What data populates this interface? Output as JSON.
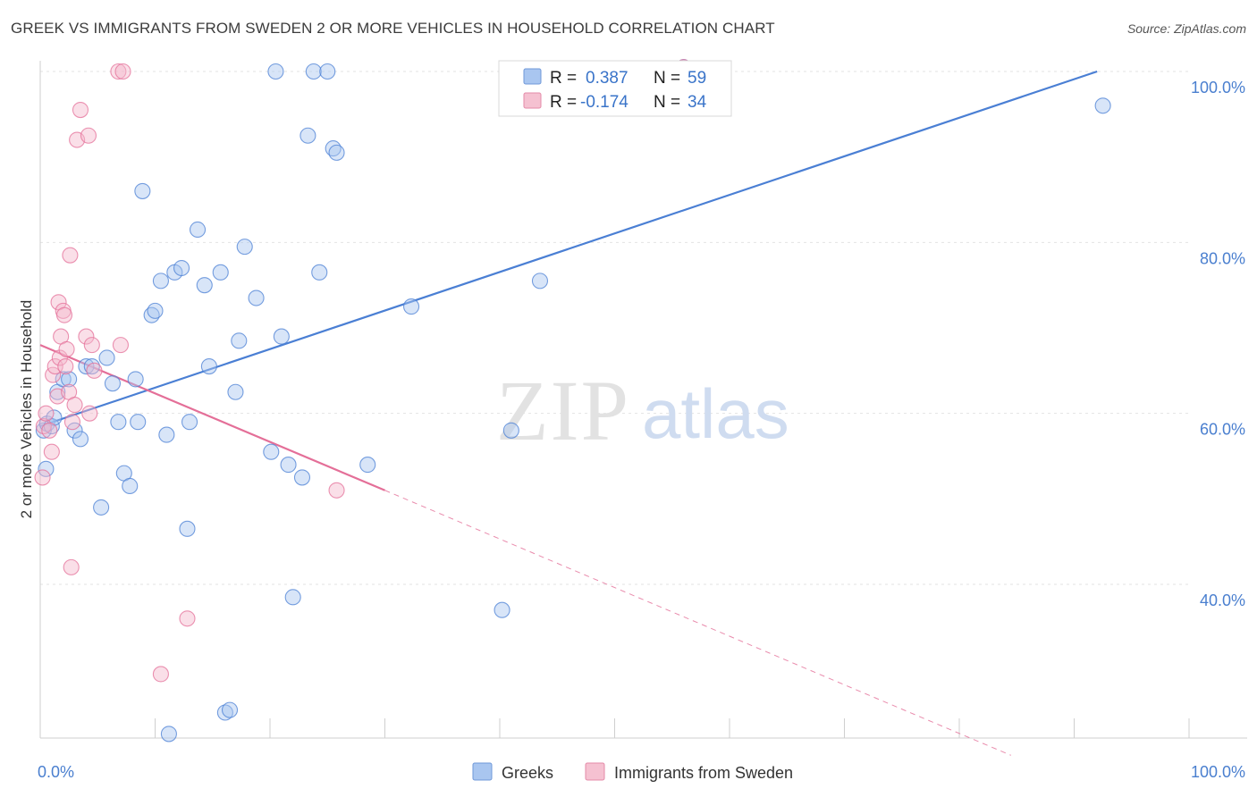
{
  "title": "GREEK VS IMMIGRANTS FROM SWEDEN 2 OR MORE VEHICLES IN HOUSEHOLD CORRELATION CHART",
  "source": "Source: ZipAtlas.com",
  "watermark": {
    "zip": "ZIP",
    "atlas": "atlas"
  },
  "legend": {
    "row1": {
      "r_label": "R =",
      "r_value": "0.387",
      "n_label": "N =",
      "n_value": "59"
    },
    "row2": {
      "r_label": "R =",
      "r_value": "-0.174",
      "n_label": "N =",
      "n_value": "34"
    }
  },
  "bottom_legend": {
    "series1": "Greeks",
    "series2": "Immigrants from Sweden"
  },
  "chart_data": {
    "type": "scatter",
    "title": "GREEK VS IMMIGRANTS FROM SWEDEN 2 OR MORE VEHICLES IN HOUSEHOLD CORRELATION CHART",
    "xlabel": "",
    "ylabel": "2 or more Vehicles in Household",
    "xlim": [
      0,
      100
    ],
    "ylim": [
      20,
      102
    ],
    "x_tick_labels": [
      "0.0%",
      "100.0%"
    ],
    "y_ticks": [
      40,
      60,
      80,
      100
    ],
    "y_tick_labels": [
      "40.0%",
      "60.0%",
      "80.0%",
      "100.0%"
    ],
    "grid": true,
    "legend_position": "top-center",
    "colors": {
      "greeks": "#4a7fd4",
      "greeks_fill": "#a9c6f0",
      "sweden": "#e46f98",
      "sweden_fill": "#f5b8cb"
    },
    "series": [
      {
        "name": "Greeks",
        "r": 0.387,
        "n": 59,
        "trend": {
          "x": [
            0,
            92
          ],
          "y": [
            58.5,
            100
          ],
          "style": "solid"
        },
        "points": [
          {
            "x": 0.3,
            "y": 58.0
          },
          {
            "x": 0.5,
            "y": 53.5
          },
          {
            "x": 0.6,
            "y": 58.8
          },
          {
            "x": 1.0,
            "y": 58.5
          },
          {
            "x": 1.2,
            "y": 59.5
          },
          {
            "x": 1.5,
            "y": 62.5
          },
          {
            "x": 2.0,
            "y": 64.0
          },
          {
            "x": 2.5,
            "y": 64.0
          },
          {
            "x": 3.0,
            "y": 58.0
          },
          {
            "x": 3.5,
            "y": 57.0
          },
          {
            "x": 4.0,
            "y": 65.5
          },
          {
            "x": 4.5,
            "y": 65.5
          },
          {
            "x": 5.3,
            "y": 49.0
          },
          {
            "x": 5.8,
            "y": 66.5
          },
          {
            "x": 6.3,
            "y": 63.5
          },
          {
            "x": 6.8,
            "y": 59.0
          },
          {
            "x": 7.3,
            "y": 53.0
          },
          {
            "x": 7.8,
            "y": 51.5
          },
          {
            "x": 8.3,
            "y": 64.0
          },
          {
            "x": 8.5,
            "y": 59.0
          },
          {
            "x": 8.9,
            "y": 86.0
          },
          {
            "x": 9.7,
            "y": 71.5
          },
          {
            "x": 10.0,
            "y": 72.0
          },
          {
            "x": 10.5,
            "y": 75.5
          },
          {
            "x": 11.0,
            "y": 57.5
          },
          {
            "x": 11.2,
            "y": 22.5
          },
          {
            "x": 11.7,
            "y": 76.5
          },
          {
            "x": 12.3,
            "y": 77.0
          },
          {
            "x": 12.8,
            "y": 46.5
          },
          {
            "x": 13.0,
            "y": 59.0
          },
          {
            "x": 13.7,
            "y": 81.5
          },
          {
            "x": 14.3,
            "y": 75.0
          },
          {
            "x": 14.7,
            "y": 65.5
          },
          {
            "x": 15.7,
            "y": 76.5
          },
          {
            "x": 16.1,
            "y": 25.0
          },
          {
            "x": 16.5,
            "y": 25.3
          },
          {
            "x": 17.0,
            "y": 62.5
          },
          {
            "x": 17.3,
            "y": 68.5
          },
          {
            "x": 17.8,
            "y": 79.5
          },
          {
            "x": 18.8,
            "y": 73.5
          },
          {
            "x": 20.1,
            "y": 55.5
          },
          {
            "x": 20.5,
            "y": 100.0
          },
          {
            "x": 21.0,
            "y": 69.0
          },
          {
            "x": 21.6,
            "y": 54.0
          },
          {
            "x": 22.0,
            "y": 38.5
          },
          {
            "x": 22.8,
            "y": 52.5
          },
          {
            "x": 23.3,
            "y": 92.5
          },
          {
            "x": 23.8,
            "y": 100.0
          },
          {
            "x": 24.3,
            "y": 76.5
          },
          {
            "x": 25.0,
            "y": 100.0
          },
          {
            "x": 25.5,
            "y": 91.0
          },
          {
            "x": 25.8,
            "y": 90.5
          },
          {
            "x": 28.5,
            "y": 54.0
          },
          {
            "x": 32.3,
            "y": 72.5
          },
          {
            "x": 40.2,
            "y": 37.0
          },
          {
            "x": 41.0,
            "y": 58.0
          },
          {
            "x": 43.5,
            "y": 75.5
          },
          {
            "x": 56.0,
            "y": 100.5
          },
          {
            "x": 92.5,
            "y": 96.0
          }
        ]
      },
      {
        "name": "Immigrants from Sweden",
        "r": -0.174,
        "n": 34,
        "trend": {
          "x": [
            0,
            30
          ],
          "y": [
            68.0,
            51.0
          ],
          "style": "solid",
          "extension": {
            "x": [
              30,
              84.5
            ],
            "y": [
              51.0,
              20.0
            ],
            "style": "dashed"
          }
        },
        "points": [
          {
            "x": 0.2,
            "y": 52.5
          },
          {
            "x": 0.3,
            "y": 58.5
          },
          {
            "x": 0.5,
            "y": 60.0
          },
          {
            "x": 0.8,
            "y": 58.0
          },
          {
            "x": 1.0,
            "y": 55.5
          },
          {
            "x": 1.1,
            "y": 64.5
          },
          {
            "x": 1.3,
            "y": 65.5
          },
          {
            "x": 1.5,
            "y": 62.0
          },
          {
            "x": 1.6,
            "y": 73.0
          },
          {
            "x": 1.7,
            "y": 66.5
          },
          {
            "x": 1.8,
            "y": 69.0
          },
          {
            "x": 2.0,
            "y": 72.0
          },
          {
            "x": 2.1,
            "y": 71.5
          },
          {
            "x": 2.2,
            "y": 65.5
          },
          {
            "x": 2.3,
            "y": 67.5
          },
          {
            "x": 2.5,
            "y": 62.5
          },
          {
            "x": 2.6,
            "y": 78.5
          },
          {
            "x": 2.7,
            "y": 42.0
          },
          {
            "x": 2.8,
            "y": 59.0
          },
          {
            "x": 3.0,
            "y": 61.0
          },
          {
            "x": 3.2,
            "y": 92.0
          },
          {
            "x": 3.5,
            "y": 95.5
          },
          {
            "x": 4.0,
            "y": 69.0
          },
          {
            "x": 4.2,
            "y": 92.5
          },
          {
            "x": 4.3,
            "y": 60.0
          },
          {
            "x": 4.5,
            "y": 68.0
          },
          {
            "x": 4.7,
            "y": 65.0
          },
          {
            "x": 6.8,
            "y": 100.0
          },
          {
            "x": 7.0,
            "y": 68.0
          },
          {
            "x": 7.2,
            "y": 100.0
          },
          {
            "x": 10.5,
            "y": 29.5
          },
          {
            "x": 12.8,
            "y": 36.0
          },
          {
            "x": 25.8,
            "y": 51.0
          },
          {
            "x": 56.0,
            "y": 100.5
          }
        ]
      }
    ]
  }
}
